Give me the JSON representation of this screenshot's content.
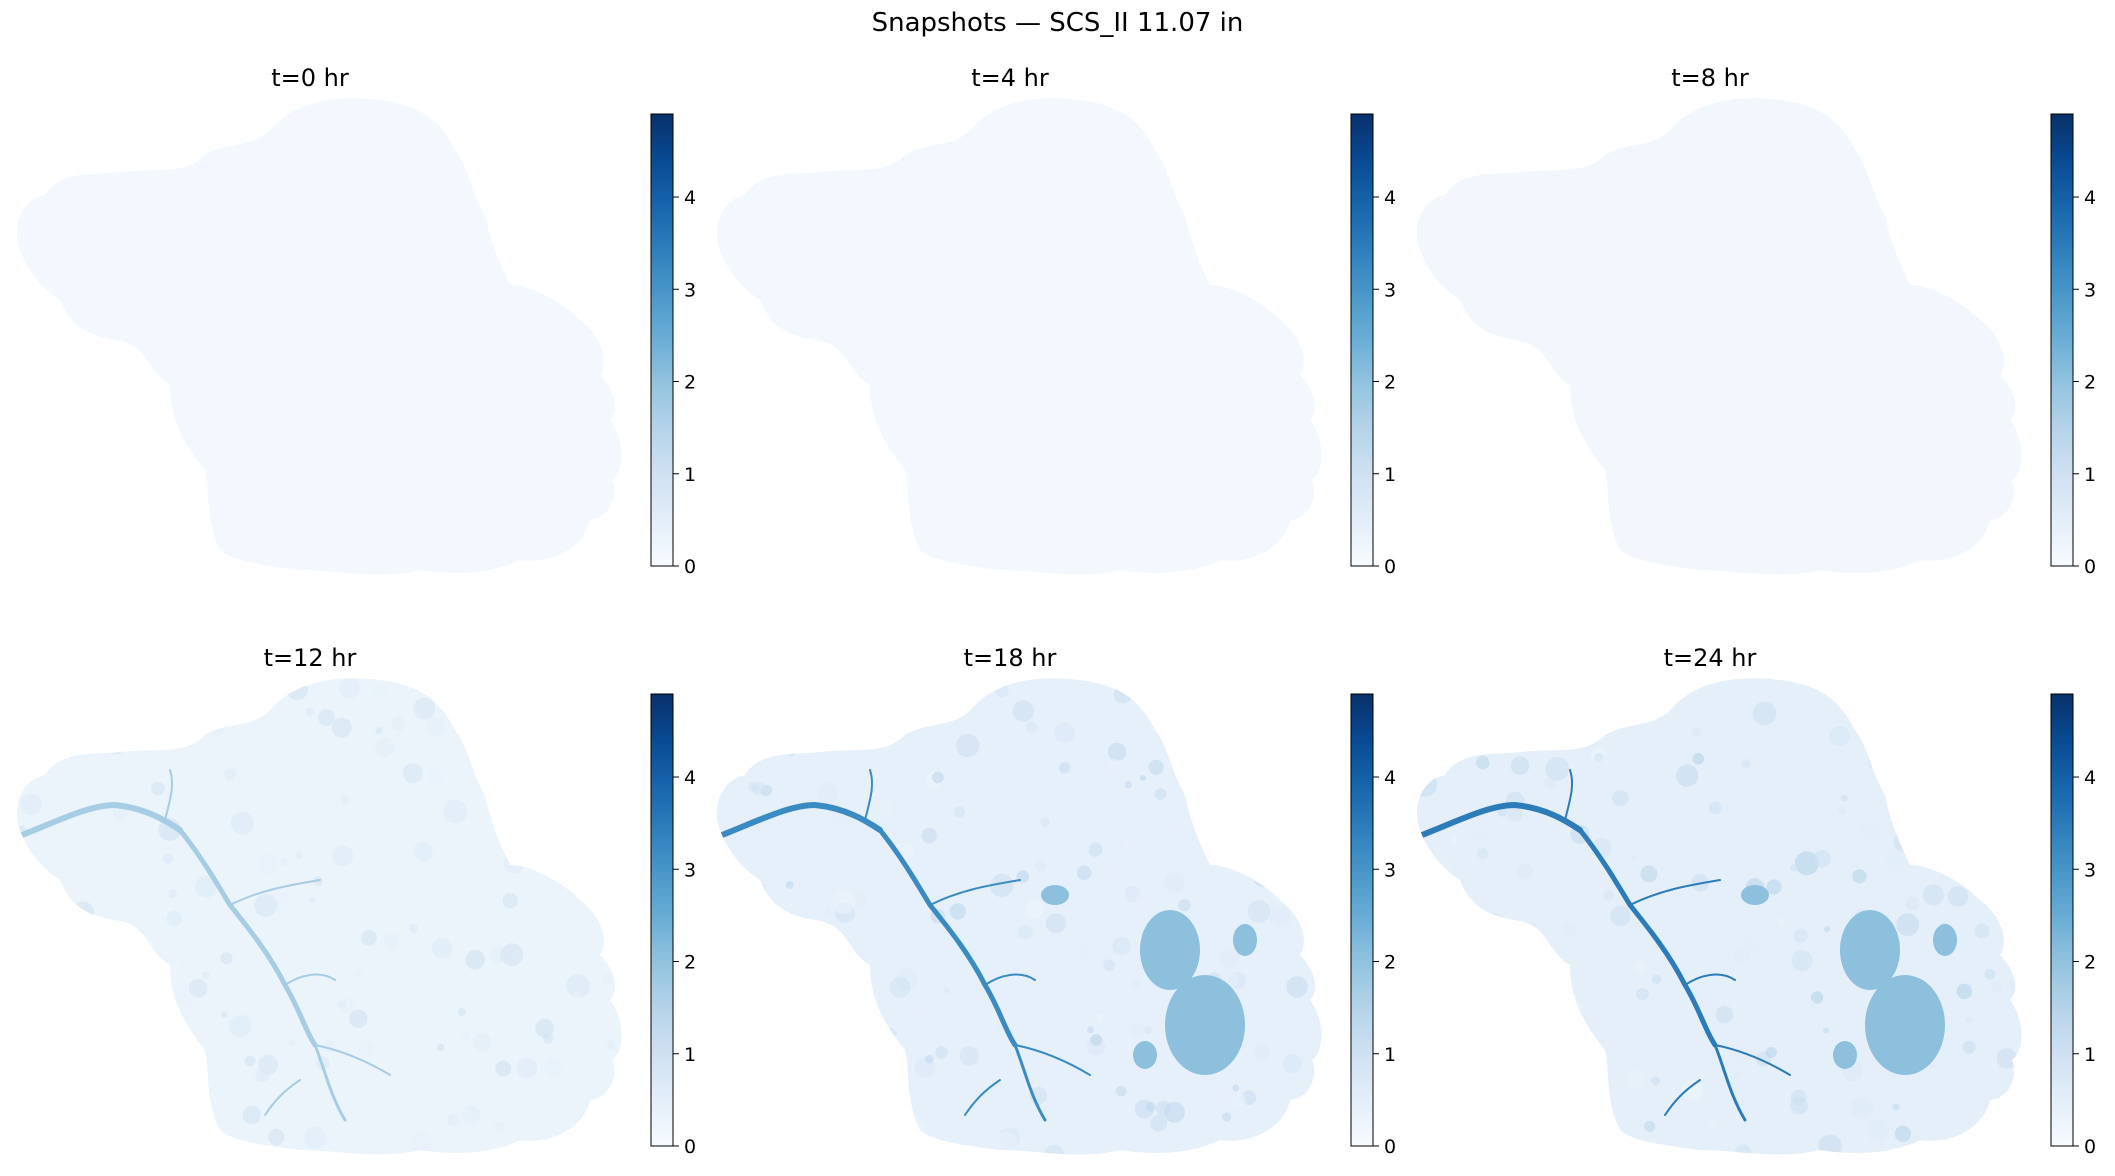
{
  "figure": {
    "suptitle": "Snapshots — SCS_II  11.07 in"
  },
  "chart_data": [
    {
      "type": "heatmap",
      "title": "t=0 hr",
      "colormap": "Blues",
      "clim": [
        0,
        4.9
      ],
      "colorbar_ticks": [
        "0",
        "1",
        "2",
        "3",
        "4"
      ],
      "intensity": 0.0,
      "channels": false
    },
    {
      "type": "heatmap",
      "title": "t=4 hr",
      "colormap": "Blues",
      "clim": [
        0,
        4.9
      ],
      "colorbar_ticks": [
        "0",
        "1",
        "2",
        "3",
        "4"
      ],
      "intensity": 0.01,
      "channels": false
    },
    {
      "type": "heatmap",
      "title": "t=8 hr",
      "colormap": "Blues",
      "clim": [
        0,
        4.9
      ],
      "colorbar_ticks": [
        "0",
        "1",
        "2",
        "3",
        "4"
      ],
      "intensity": 0.03,
      "channels": false
    },
    {
      "type": "heatmap",
      "title": "t=12 hr",
      "colormap": "Blues",
      "clim": [
        0,
        4.9
      ],
      "colorbar_ticks": [
        "0",
        "1",
        "2",
        "3",
        "4"
      ],
      "intensity": 0.12,
      "channels": true,
      "channel_strength": 0.25,
      "ponds": false
    },
    {
      "type": "heatmap",
      "title": "t=18 hr",
      "colormap": "Blues",
      "clim": [
        0,
        4.9
      ],
      "colorbar_ticks": [
        "0",
        "1",
        "2",
        "3",
        "4"
      ],
      "intensity": 0.18,
      "channels": true,
      "channel_strength": 0.75,
      "ponds": true
    },
    {
      "type": "heatmap",
      "title": "t=24 hr",
      "colormap": "Blues",
      "clim": [
        0,
        4.9
      ],
      "colorbar_ticks": [
        "0",
        "1",
        "2",
        "3",
        "4"
      ],
      "intensity": 0.2,
      "channels": true,
      "channel_strength": 0.85,
      "ponds": true
    }
  ]
}
